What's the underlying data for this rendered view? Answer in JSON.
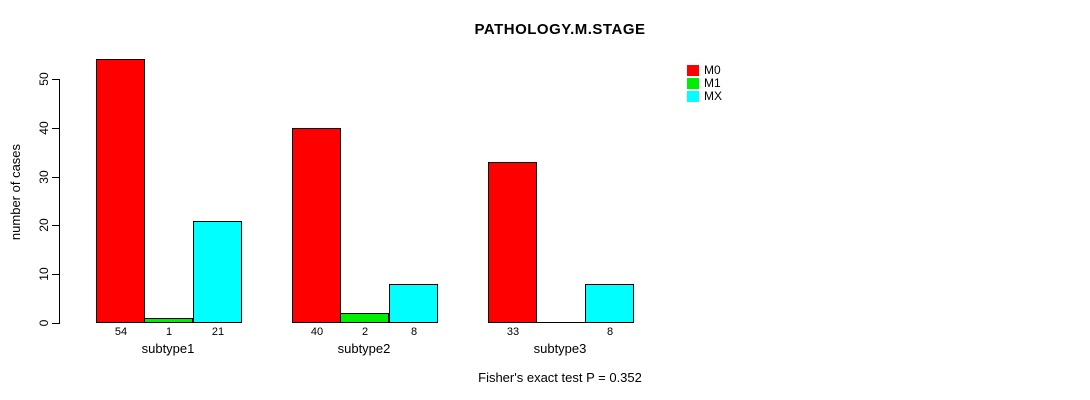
{
  "chart_data": {
    "type": "bar",
    "title": "PATHOLOGY.M.STAGE",
    "xlabel": "",
    "ylabel": "number of cases",
    "annotation": "Fisher's exact test P = 0.352",
    "categories": [
      "subtype1",
      "subtype2",
      "subtype3"
    ],
    "series": [
      {
        "name": "M0",
        "color": "#FF0000",
        "values": [
          54,
          40,
          33
        ]
      },
      {
        "name": "M1",
        "color": "#00EE00",
        "values": [
          1,
          2,
          0
        ]
      },
      {
        "name": "MX",
        "color": "#00FFFF",
        "values": [
          21,
          8,
          8
        ]
      }
    ],
    "bar_value_labels": [
      [
        "54",
        "1",
        "21"
      ],
      [
        "40",
        "2",
        "8"
      ],
      [
        "33",
        "",
        "8"
      ]
    ],
    "yticks": [
      "0",
      "10",
      "20",
      "30",
      "40",
      "50"
    ],
    "ytick_values": [
      0,
      10,
      20,
      30,
      40,
      50
    ],
    "ylim": [
      0,
      54
    ],
    "grid": false,
    "legend_position": "top-right",
    "axis_color": "#000000",
    "background_color": "#FFFFFF"
  }
}
